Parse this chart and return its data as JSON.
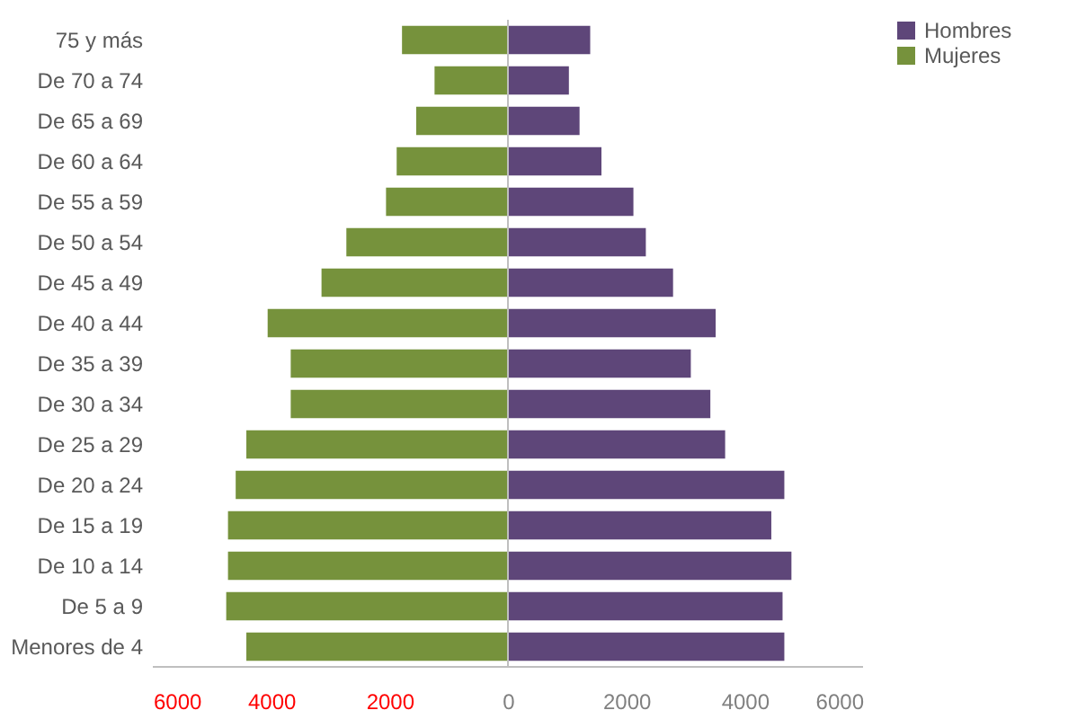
{
  "chart_data": {
    "type": "bar",
    "orientation": "horizontal",
    "categories": [
      "75 y más",
      "De 70 a 74",
      "De 65 a 69",
      "De 60 a 64",
      "De 55 a 59",
      "De 50 a 54",
      "De 45 a 49",
      "De 40 a 44",
      "De 35 a 39",
      "De 30 a 34",
      "De 25 a 29",
      "De 20 a 24",
      "De 15 a 19",
      "De 10 a 14",
      "De 5 a 9",
      "Menores de 4"
    ],
    "series": [
      {
        "name": "Hombres",
        "color": "#5e4679",
        "values": [
          1390,
          1030,
          1210,
          1580,
          2120,
          2330,
          2790,
          3510,
          3090,
          3420,
          3670,
          4670,
          4450,
          4790,
          4640,
          4670
        ]
      },
      {
        "name": "Mujeres",
        "color": "#76923c",
        "values": [
          -1790,
          -1240,
          -1550,
          -1880,
          -2060,
          -2730,
          -3150,
          -4060,
          -3670,
          -3670,
          -4420,
          -4600,
          -4730,
          -4730,
          -4760,
          -4420
        ]
      }
    ],
    "xlim": [
      -6000,
      6000
    ],
    "xticks": [
      {
        "value": -6000,
        "label": "6000"
      },
      {
        "value": -4000,
        "label": "4000"
      },
      {
        "value": -2000,
        "label": "2000"
      },
      0,
      2000,
      4000,
      6000
    ],
    "ref_lines": [
      {
        "axis": "x",
        "value": 0,
        "color": "#bfbfbf"
      }
    ],
    "grid": false,
    "legend": "right",
    "stacked": true
  }
}
